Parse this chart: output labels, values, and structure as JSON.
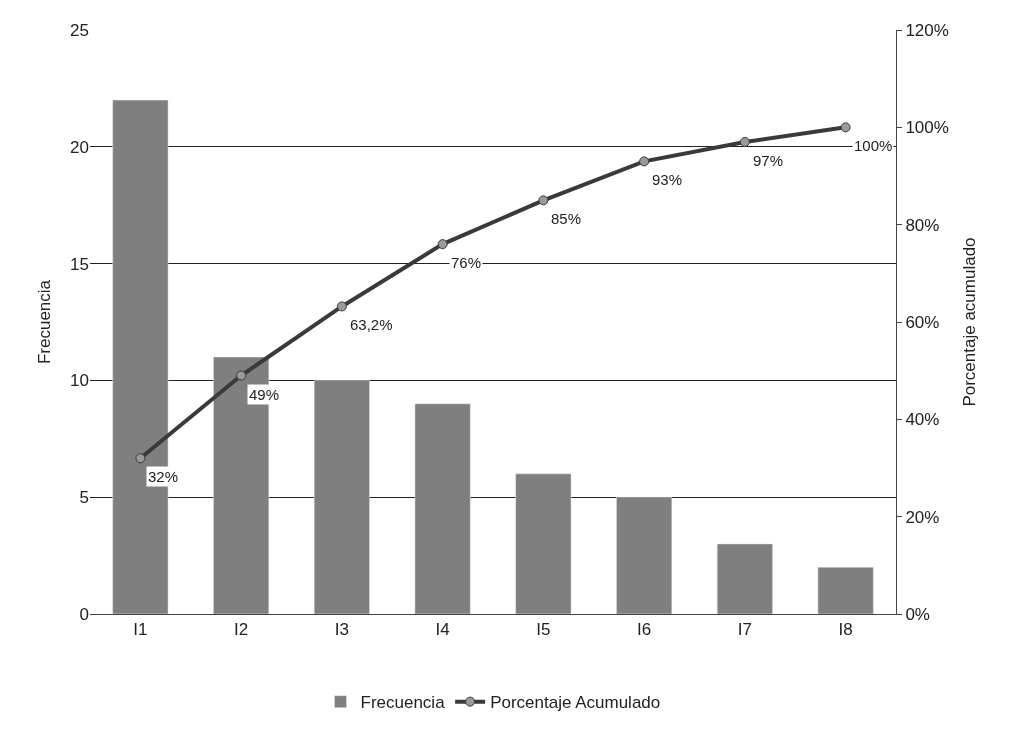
{
  "chart_data": {
    "type": "bar",
    "categories": [
      "I1",
      "I2",
      "I3",
      "I4",
      "I5",
      "I6",
      "I7",
      "I8"
    ],
    "ylabel": "Frecuencia",
    "y2label": "Porcentaje acumulado",
    "series": [
      {
        "name": "Frecuencia",
        "color": "#7f7f7f",
        "values": [
          22,
          11,
          10,
          9,
          6,
          5,
          3,
          2
        ]
      },
      {
        "name": "Porcentaje Acumulado",
        "type": "line",
        "axis": "y2",
        "color": "#3a3a3a",
        "values": [
          0.32,
          0.49,
          0.632,
          0.76,
          0.85,
          0.93,
          0.97,
          1.0
        ],
        "value_labels": [
          "32%",
          "49%",
          "63,2%",
          "76%",
          "85%",
          "93%",
          "97%",
          "100%"
        ]
      }
    ],
    "ylim": [
      0,
      25
    ],
    "yticks": [
      0,
      5,
      10,
      15,
      20,
      25
    ],
    "y2lim": [
      0,
      1.2
    ],
    "y2ticks": [
      {
        "value": 0,
        "label": "0%"
      },
      {
        "value": 0.2,
        "label": "20%"
      },
      {
        "value": 0.4,
        "label": "40%"
      },
      {
        "value": 0.6,
        "label": "60%"
      },
      {
        "value": 0.8,
        "label": "80%"
      },
      {
        "value": 1.0,
        "label": "100%"
      },
      {
        "value": 1.2,
        "label": "120%"
      }
    ],
    "grid": "y",
    "legend": "bottom",
    "marker": "circle",
    "line_style": "solid"
  }
}
